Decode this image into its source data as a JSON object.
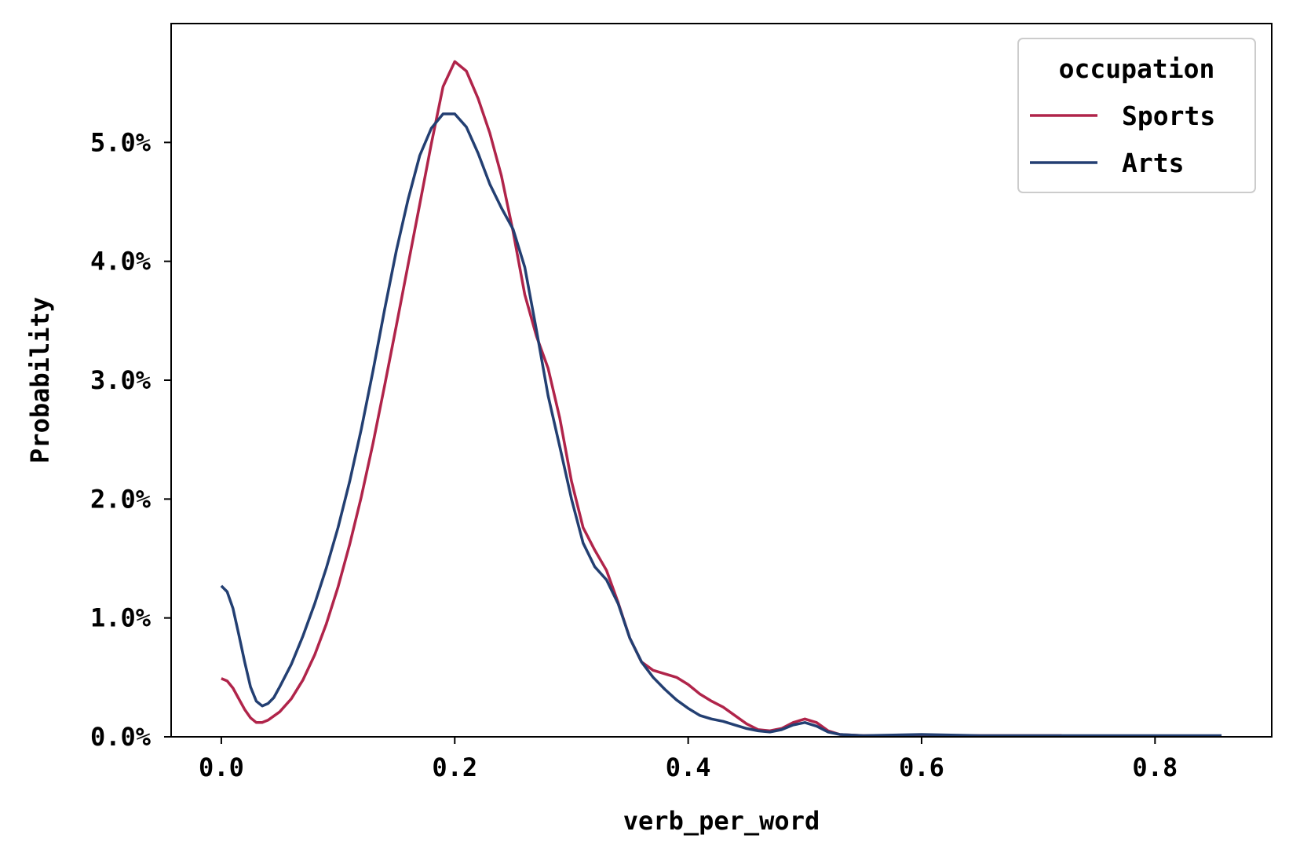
{
  "chart_data": {
    "type": "line",
    "xlabel": "verb_per_word",
    "ylabel": "Probability",
    "xlim": [
      -0.043,
      0.9
    ],
    "ylim": [
      0,
      0.06
    ],
    "x_ticks": [
      0.0,
      0.2,
      0.4,
      0.6,
      0.8
    ],
    "x_tick_labels": [
      "0.0",
      "0.2",
      "0.4",
      "0.6",
      "0.8"
    ],
    "y_ticks": [
      0,
      0.01,
      0.02,
      0.03,
      0.04,
      0.05
    ],
    "y_tick_labels": [
      "0.0%",
      "1.0%",
      "2.0%",
      "3.0%",
      "4.0%",
      "5.0%"
    ],
    "grid": false,
    "legend": {
      "title": "occupation",
      "placement": "top-right"
    },
    "series": [
      {
        "name": "Sports",
        "color": "#b0244a",
        "points": [
          [
            0.0,
            0.0049
          ],
          [
            0.005,
            0.0047
          ],
          [
            0.01,
            0.0041
          ],
          [
            0.015,
            0.0032
          ],
          [
            0.02,
            0.0023
          ],
          [
            0.025,
            0.0016
          ],
          [
            0.03,
            0.0012
          ],
          [
            0.035,
            0.0012
          ],
          [
            0.04,
            0.0014
          ],
          [
            0.05,
            0.0021
          ],
          [
            0.06,
            0.0032
          ],
          [
            0.07,
            0.0048
          ],
          [
            0.08,
            0.0069
          ],
          [
            0.09,
            0.0095
          ],
          [
            0.1,
            0.0126
          ],
          [
            0.11,
            0.0162
          ],
          [
            0.12,
            0.0202
          ],
          [
            0.13,
            0.0247
          ],
          [
            0.14,
            0.0296
          ],
          [
            0.15,
            0.0346
          ],
          [
            0.16,
            0.0397
          ],
          [
            0.17,
            0.0448
          ],
          [
            0.18,
            0.0499
          ],
          [
            0.19,
            0.0547
          ],
          [
            0.2,
            0.0568
          ],
          [
            0.21,
            0.056
          ],
          [
            0.22,
            0.0537
          ],
          [
            0.23,
            0.0508
          ],
          [
            0.24,
            0.0472
          ],
          [
            0.25,
            0.0425
          ],
          [
            0.26,
            0.0372
          ],
          [
            0.27,
            0.0337
          ],
          [
            0.28,
            0.031
          ],
          [
            0.29,
            0.0268
          ],
          [
            0.3,
            0.0215
          ],
          [
            0.31,
            0.0176
          ],
          [
            0.32,
            0.0157
          ],
          [
            0.33,
            0.014
          ],
          [
            0.34,
            0.0113
          ],
          [
            0.35,
            0.0083
          ],
          [
            0.36,
            0.0063
          ],
          [
            0.37,
            0.0056
          ],
          [
            0.38,
            0.0053
          ],
          [
            0.39,
            0.005
          ],
          [
            0.4,
            0.0044
          ],
          [
            0.41,
            0.0036
          ],
          [
            0.42,
            0.003
          ],
          [
            0.43,
            0.0025
          ],
          [
            0.44,
            0.0018
          ],
          [
            0.45,
            0.0011
          ],
          [
            0.46,
            0.0006
          ],
          [
            0.47,
            0.0005
          ],
          [
            0.48,
            0.0007
          ],
          [
            0.49,
            0.0012
          ],
          [
            0.5,
            0.0015
          ],
          [
            0.51,
            0.0012
          ],
          [
            0.52,
            0.0005
          ],
          [
            0.53,
            0.0002
          ],
          [
            0.55,
            0.0001
          ],
          [
            0.6,
            0.0001
          ],
          [
            0.65,
            0.0001
          ],
          [
            0.7,
            0.0001
          ],
          [
            0.72,
            0.0001
          ]
        ]
      },
      {
        "name": "Arts",
        "color": "#233f72",
        "points": [
          [
            0.0,
            0.0127
          ],
          [
            0.005,
            0.0122
          ],
          [
            0.01,
            0.0108
          ],
          [
            0.015,
            0.0086
          ],
          [
            0.02,
            0.0063
          ],
          [
            0.025,
            0.0042
          ],
          [
            0.03,
            0.003
          ],
          [
            0.035,
            0.0026
          ],
          [
            0.04,
            0.0028
          ],
          [
            0.045,
            0.0033
          ],
          [
            0.05,
            0.0042
          ],
          [
            0.06,
            0.0061
          ],
          [
            0.07,
            0.0085
          ],
          [
            0.08,
            0.0112
          ],
          [
            0.09,
            0.0142
          ],
          [
            0.1,
            0.0176
          ],
          [
            0.11,
            0.0215
          ],
          [
            0.12,
            0.0259
          ],
          [
            0.13,
            0.0308
          ],
          [
            0.14,
            0.036
          ],
          [
            0.15,
            0.0409
          ],
          [
            0.16,
            0.0452
          ],
          [
            0.17,
            0.0489
          ],
          [
            0.18,
            0.0512
          ],
          [
            0.19,
            0.0524
          ],
          [
            0.2,
            0.0524
          ],
          [
            0.21,
            0.0513
          ],
          [
            0.22,
            0.0491
          ],
          [
            0.23,
            0.0465
          ],
          [
            0.24,
            0.0445
          ],
          [
            0.25,
            0.0427
          ],
          [
            0.26,
            0.0395
          ],
          [
            0.27,
            0.0342
          ],
          [
            0.28,
            0.0287
          ],
          [
            0.29,
            0.0244
          ],
          [
            0.3,
            0.02
          ],
          [
            0.31,
            0.0163
          ],
          [
            0.32,
            0.0143
          ],
          [
            0.33,
            0.0132
          ],
          [
            0.34,
            0.0112
          ],
          [
            0.35,
            0.0083
          ],
          [
            0.36,
            0.0063
          ],
          [
            0.37,
            0.005
          ],
          [
            0.38,
            0.004
          ],
          [
            0.39,
            0.0031
          ],
          [
            0.4,
            0.0024
          ],
          [
            0.41,
            0.0018
          ],
          [
            0.42,
            0.0015
          ],
          [
            0.43,
            0.0013
          ],
          [
            0.44,
            0.001
          ],
          [
            0.45,
            0.0007
          ],
          [
            0.46,
            0.0005
          ],
          [
            0.47,
            0.0004
          ],
          [
            0.48,
            0.0006
          ],
          [
            0.49,
            0.001
          ],
          [
            0.5,
            0.0012
          ],
          [
            0.51,
            0.0009
          ],
          [
            0.52,
            0.0004
          ],
          [
            0.53,
            0.0002
          ],
          [
            0.55,
            0.0001
          ],
          [
            0.6,
            0.0002
          ],
          [
            0.65,
            0.0001
          ],
          [
            0.7,
            0.0001
          ],
          [
            0.75,
            0.0001
          ],
          [
            0.8,
            0.0001
          ],
          [
            0.857,
            0.0001
          ]
        ]
      }
    ]
  }
}
